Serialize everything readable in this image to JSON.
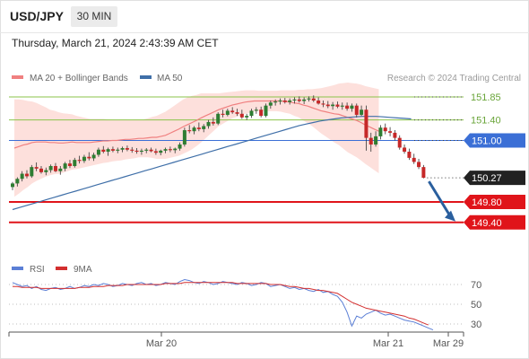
{
  "header": {
    "symbol": "USD/JPY",
    "timeframe": "30 MIN",
    "timestamp": "Thursday, March 21, 2024 2:43:39 AM CET"
  },
  "legend": {
    "ma20_label": "MA 20 + Bollinger Bands",
    "ma50_label": "MA 50",
    "credit": "Research © 2024 Trading Central",
    "rsi_label": "RSI",
    "rsi_ma_label": "9MA"
  },
  "colors": {
    "bull_candle": "#2e7d32",
    "bear_candle": "#c62828",
    "ma20": "#f08080",
    "bollinger_fill": "#fde0dc",
    "ma50": "#3f6fa8",
    "resistance": "#8bc34a",
    "pivot": "#3b6fd6",
    "support": "#e0141a",
    "rsi": "#5b7fd6",
    "rsi_ma": "#d32f2f",
    "arrow": "#2a5f9e"
  },
  "chart_data": [
    {
      "type": "candlestick",
      "title": "USD/JPY 30 MIN",
      "x_tick_labels": [
        "Mar 20",
        "Mar 21",
        "Mar 29"
      ],
      "ylim": [
        148.8,
        152.2
      ],
      "current_price": "150.27",
      "levels": [
        {
          "value": 151.85,
          "label": "151.85",
          "kind": "resistance"
        },
        {
          "value": 151.4,
          "label": "151.40",
          "kind": "resistance"
        },
        {
          "value": 151.0,
          "label": "151.00",
          "kind": "pivot"
        },
        {
          "value": 149.8,
          "label": "149.80",
          "kind": "support"
        },
        {
          "value": 149.4,
          "label": "149.40",
          "kind": "support"
        }
      ],
      "candles": [
        [
          150.09,
          150.19,
          150.03,
          150.16
        ],
        [
          150.16,
          150.28,
          150.1,
          150.25
        ],
        [
          150.25,
          150.4,
          150.2,
          150.35
        ],
        [
          150.35,
          150.42,
          150.26,
          150.3
        ],
        [
          150.3,
          150.52,
          150.27,
          150.48
        ],
        [
          150.48,
          150.57,
          150.4,
          150.45
        ],
        [
          150.45,
          150.5,
          150.35,
          150.38
        ],
        [
          150.38,
          150.47,
          150.32,
          150.42
        ],
        [
          150.42,
          150.53,
          150.37,
          150.5
        ],
        [
          150.5,
          150.56,
          150.38,
          150.4
        ],
        [
          150.4,
          150.5,
          150.33,
          150.45
        ],
        [
          150.45,
          150.58,
          150.4,
          150.55
        ],
        [
          150.55,
          150.62,
          150.46,
          150.5
        ],
        [
          150.5,
          150.66,
          150.47,
          150.62
        ],
        [
          150.62,
          150.7,
          150.55,
          150.6
        ],
        [
          150.6,
          150.72,
          150.56,
          150.68
        ],
        [
          150.68,
          150.77,
          150.61,
          150.65
        ],
        [
          150.65,
          150.76,
          150.6,
          150.72
        ],
        [
          150.72,
          150.86,
          150.68,
          150.82
        ],
        [
          150.82,
          150.89,
          150.75,
          150.78
        ],
        [
          150.78,
          150.86,
          150.7,
          150.83
        ],
        [
          150.83,
          150.88,
          150.77,
          150.8
        ],
        [
          150.8,
          150.86,
          150.75,
          150.82
        ],
        [
          150.82,
          150.88,
          150.77,
          150.85
        ],
        [
          150.85,
          150.9,
          150.79,
          150.82
        ],
        [
          150.82,
          150.87,
          150.76,
          150.8
        ],
        [
          150.8,
          150.85,
          150.74,
          150.78
        ],
        [
          150.78,
          150.84,
          150.72,
          150.8
        ],
        [
          150.8,
          150.85,
          150.75,
          150.82
        ],
        [
          150.82,
          150.86,
          150.77,
          150.79
        ],
        [
          150.79,
          150.84,
          150.72,
          150.76
        ],
        [
          150.76,
          150.82,
          150.71,
          150.8
        ],
        [
          150.8,
          150.86,
          150.75,
          150.83
        ],
        [
          150.83,
          150.88,
          150.77,
          150.81
        ],
        [
          150.81,
          150.86,
          150.75,
          150.84
        ],
        [
          150.84,
          150.96,
          150.8,
          150.92
        ],
        [
          150.92,
          151.25,
          150.88,
          151.2
        ],
        [
          151.2,
          151.3,
          151.14,
          151.18
        ],
        [
          151.18,
          151.28,
          151.12,
          151.25
        ],
        [
          151.25,
          151.35,
          151.18,
          151.22
        ],
        [
          151.22,
          151.32,
          151.16,
          151.28
        ],
        [
          151.28,
          151.4,
          151.23,
          151.36
        ],
        [
          151.36,
          151.45,
          151.29,
          151.33
        ],
        [
          151.33,
          151.55,
          151.3,
          151.52
        ],
        [
          151.52,
          151.6,
          151.45,
          151.5
        ],
        [
          151.5,
          151.62,
          151.47,
          151.58
        ],
        [
          151.58,
          151.65,
          151.52,
          151.55
        ],
        [
          151.55,
          151.62,
          151.48,
          151.52
        ],
        [
          151.52,
          151.6,
          151.42,
          151.45
        ],
        [
          151.45,
          151.52,
          151.4,
          151.48
        ],
        [
          151.48,
          151.62,
          151.44,
          151.58
        ],
        [
          151.58,
          151.65,
          151.52,
          151.6
        ],
        [
          151.6,
          151.66,
          151.45,
          151.48
        ],
        [
          151.48,
          151.72,
          151.45,
          151.68
        ],
        [
          151.68,
          151.78,
          151.62,
          151.74
        ],
        [
          151.74,
          151.8,
          151.68,
          151.76
        ],
        [
          151.76,
          151.82,
          151.7,
          151.78
        ],
        [
          151.78,
          151.83,
          151.72,
          151.75
        ],
        [
          151.75,
          151.82,
          151.7,
          151.78
        ],
        [
          151.78,
          151.84,
          151.72,
          151.8
        ],
        [
          151.8,
          151.86,
          151.74,
          151.77
        ],
        [
          151.77,
          151.84,
          151.71,
          151.8
        ],
        [
          151.8,
          151.86,
          151.76,
          151.82
        ],
        [
          151.82,
          151.88,
          151.75,
          151.78
        ],
        [
          151.78,
          151.84,
          151.7,
          151.72
        ],
        [
          151.72,
          151.78,
          151.65,
          151.7
        ],
        [
          151.7,
          151.77,
          151.63,
          151.67
        ],
        [
          151.67,
          151.75,
          151.6,
          151.7
        ],
        [
          151.7,
          151.76,
          151.63,
          151.66
        ],
        [
          151.66,
          151.74,
          151.6,
          151.68
        ],
        [
          151.68,
          151.74,
          151.58,
          151.62
        ],
        [
          151.62,
          151.72,
          151.56,
          151.68
        ],
        [
          151.68,
          151.72,
          151.45,
          151.5
        ],
        [
          151.5,
          151.68,
          151.48,
          151.6
        ],
        [
          151.6,
          151.68,
          150.8,
          151.05
        ],
        [
          151.05,
          151.15,
          150.78,
          150.92
        ],
        [
          150.92,
          151.18,
          150.88,
          151.08
        ],
        [
          151.08,
          151.3,
          151.02,
          151.25
        ],
        [
          151.25,
          151.33,
          151.12,
          151.18
        ],
        [
          151.18,
          151.26,
          151.08,
          151.15
        ],
        [
          151.15,
          151.2,
          151.0,
          151.05
        ],
        [
          151.05,
          151.1,
          150.82,
          150.86
        ],
        [
          150.86,
          150.92,
          150.74,
          150.78
        ],
        [
          150.78,
          150.84,
          150.62,
          150.66
        ],
        [
          150.66,
          150.74,
          150.54,
          150.58
        ],
        [
          150.58,
          150.64,
          150.44,
          150.48
        ],
        [
          150.48,
          150.52,
          150.26,
          150.27
        ]
      ],
      "ma20": [
        150.85,
        150.88,
        150.91,
        150.93,
        150.96,
        150.97,
        150.97,
        150.97,
        150.96,
        150.96,
        150.95,
        150.95,
        150.96,
        150.97,
        150.96,
        150.96,
        150.96,
        150.96,
        150.97,
        150.98,
        150.99,
        150.99,
        151.0,
        151.0,
        151.01,
        151.02,
        151.02,
        151.03,
        151.04,
        151.04,
        151.05,
        151.06,
        151.06,
        151.08,
        151.1,
        151.14,
        151.18,
        151.22,
        151.27,
        151.31,
        151.35,
        151.39,
        151.44,
        151.48,
        151.52,
        151.56,
        151.6,
        151.63,
        151.66,
        151.69,
        151.71,
        151.73,
        151.75,
        151.76,
        151.77,
        151.77,
        151.77,
        151.77,
        151.77,
        151.77,
        151.77,
        151.76,
        151.75,
        151.73,
        151.72,
        151.69,
        151.67,
        151.64,
        151.61,
        151.58,
        151.56,
        151.54,
        151.52,
        151.51,
        151.48,
        151.45,
        151.42,
        151.39,
        151.35,
        151.3,
        151.26,
        151.22,
        151.18
      ],
      "bb_width": [
        0.95,
        0.92,
        0.88,
        0.84,
        0.8,
        0.76,
        0.72,
        0.68,
        0.64,
        0.62,
        0.6,
        0.58,
        0.56,
        0.54,
        0.52,
        0.5,
        0.48,
        0.46,
        0.45,
        0.44,
        0.43,
        0.42,
        0.41,
        0.4,
        0.4,
        0.39,
        0.38,
        0.38,
        0.37,
        0.37,
        0.38,
        0.4,
        0.42,
        0.44,
        0.46,
        0.48,
        0.5,
        0.52,
        0.53,
        0.53,
        0.52,
        0.5,
        0.48,
        0.44,
        0.4,
        0.36,
        0.32,
        0.3,
        0.28,
        0.26,
        0.25,
        0.24,
        0.23,
        0.22,
        0.21,
        0.2,
        0.2,
        0.2,
        0.2,
        0.2,
        0.21,
        0.22,
        0.23,
        0.25,
        0.27,
        0.3,
        0.33,
        0.36,
        0.4,
        0.44,
        0.48,
        0.52,
        0.56,
        0.6,
        0.64,
        0.68,
        0.7,
        0.72,
        0.74,
        0.76,
        0.78,
        0.8,
        0.82
      ],
      "ma50": [
        149.65,
        149.69,
        149.73,
        149.77,
        149.81,
        149.85,
        149.89,
        149.93,
        149.97,
        150.01,
        150.05,
        150.09,
        150.13,
        150.17,
        150.21,
        150.25,
        150.29,
        150.33,
        150.37,
        150.41,
        150.45,
        150.49,
        150.53,
        150.57,
        150.61,
        150.65,
        150.69,
        150.73,
        150.77,
        150.81,
        150.85,
        150.89,
        150.93,
        150.97,
        151.01,
        151.05,
        151.09,
        151.13,
        151.17,
        151.21,
        151.25,
        151.29,
        151.32,
        151.35,
        151.38,
        151.4,
        151.42,
        151.44,
        151.45,
        151.46,
        151.47,
        151.47,
        151.47,
        151.46,
        151.45,
        151.44,
        151.43,
        151.42
      ],
      "ma50_start_index": 5,
      "ma50_step": 1.4,
      "band_start_index": 0,
      "band_step": 1.06
    },
    {
      "type": "line",
      "title": "RSI",
      "x_tick_labels": [
        "Mar 20",
        "Mar 21",
        "Mar 29"
      ],
      "ylim": [
        20,
        80
      ],
      "y_tick_labels": [
        "70",
        "50",
        "30"
      ],
      "y_ticks": [
        70,
        50,
        30
      ],
      "series": [
        {
          "name": "RSI",
          "values": [
            72,
            70,
            68,
            69,
            66,
            68,
            65,
            64,
            66,
            67,
            65,
            66,
            68,
            66,
            67,
            69,
            68,
            70,
            69,
            71,
            70,
            68,
            69,
            71,
            70,
            69,
            71,
            72,
            70,
            71,
            69,
            70,
            72,
            71,
            70,
            73,
            75,
            74,
            72,
            71,
            73,
            72,
            70,
            71,
            73,
            72,
            71,
            70,
            72,
            71,
            69,
            70,
            72,
            71,
            68,
            69,
            70,
            68,
            66,
            67,
            65,
            66,
            64,
            63,
            65,
            62,
            63,
            60,
            58,
            52,
            42,
            28,
            38,
            36,
            40,
            42,
            44,
            41,
            39,
            40,
            38,
            36,
            34,
            33,
            32,
            30,
            28,
            26,
            24
          ]
        },
        {
          "name": "9MA",
          "values": [
            68,
            68,
            67,
            67,
            67,
            67,
            66,
            66,
            66,
            66,
            66,
            66,
            66,
            66,
            67,
            67,
            67,
            68,
            68,
            68,
            69,
            69,
            69,
            69,
            70,
            70,
            70,
            70,
            70,
            70,
            70,
            70,
            71,
            71,
            71,
            71,
            72,
            72,
            72,
            72,
            72,
            72,
            72,
            72,
            72,
            72,
            72,
            71,
            71,
            71,
            71,
            71,
            71,
            71,
            70,
            70,
            70,
            69,
            68,
            68,
            67,
            66,
            66,
            65,
            64,
            64,
            63,
            62,
            61,
            58,
            55,
            52,
            50,
            48,
            46,
            45,
            44,
            43,
            42,
            41,
            40,
            39,
            38,
            36,
            35,
            33,
            31,
            29
          ]
        }
      ]
    }
  ]
}
